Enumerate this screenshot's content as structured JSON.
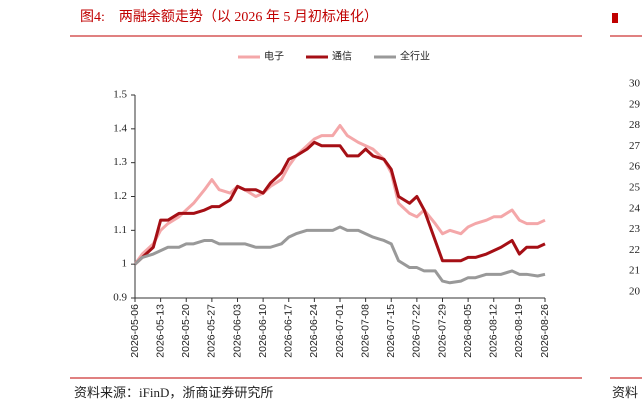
{
  "chart_data": [
    {
      "type": "line",
      "title": "图4:　两融余额走势（以 2026 年 5 月初标准化）",
      "source": "资料来源：iFinD，浙商证券研究所",
      "x": [
        "2026-05-06",
        "2026-05-08",
        "2026-05-11",
        "2026-05-13",
        "2026-05-15",
        "2026-05-18",
        "2026-05-20",
        "2026-05-22",
        "2026-05-25",
        "2026-05-27",
        "2026-05-29",
        "2026-06-01",
        "2026-06-03",
        "2026-06-05",
        "2026-06-08",
        "2026-06-10",
        "2026-06-12",
        "2026-06-15",
        "2026-06-17",
        "2026-06-19",
        "2026-06-22",
        "2026-06-24",
        "2026-06-26",
        "2026-06-29",
        "2026-07-01",
        "2026-07-03",
        "2026-07-06",
        "2026-07-08",
        "2026-07-10",
        "2026-07-13",
        "2026-07-15",
        "2026-07-17",
        "2026-07-20",
        "2026-07-22",
        "2026-07-24",
        "2026-07-27",
        "2026-07-29",
        "2026-07-31",
        "2026-08-03",
        "2026-08-05",
        "2026-08-07",
        "2026-08-10",
        "2026-08-12",
        "2026-08-14",
        "2026-08-17",
        "2026-08-19",
        "2026-08-21",
        "2026-08-24",
        "2026-08-26"
      ],
      "series": [
        {
          "name": "电子",
          "color": "#f4a7a9",
          "values": [
            1.0,
            1.03,
            1.06,
            1.1,
            1.12,
            1.14,
            1.16,
            1.18,
            1.22,
            1.25,
            1.22,
            1.21,
            1.23,
            1.22,
            1.2,
            1.21,
            1.23,
            1.25,
            1.29,
            1.32,
            1.35,
            1.37,
            1.38,
            1.38,
            1.41,
            1.38,
            1.36,
            1.35,
            1.34,
            1.31,
            1.27,
            1.18,
            1.15,
            1.14,
            1.16,
            1.12,
            1.09,
            1.1,
            1.09,
            1.11,
            1.12,
            1.13,
            1.14,
            1.14,
            1.16,
            1.13,
            1.12,
            1.12,
            1.13
          ]
        },
        {
          "name": "通信",
          "color": "#a50f15",
          "values": [
            1.0,
            1.02,
            1.05,
            1.13,
            1.13,
            1.15,
            1.15,
            1.15,
            1.16,
            1.17,
            1.17,
            1.19,
            1.23,
            1.22,
            1.22,
            1.21,
            1.24,
            1.27,
            1.31,
            1.32,
            1.34,
            1.36,
            1.35,
            1.35,
            1.35,
            1.32,
            1.32,
            1.34,
            1.32,
            1.31,
            1.28,
            1.2,
            1.18,
            1.2,
            1.16,
            1.07,
            1.01,
            1.01,
            1.01,
            1.02,
            1.02,
            1.03,
            1.04,
            1.05,
            1.07,
            1.03,
            1.05,
            1.05,
            1.06
          ]
        },
        {
          "name": "全行业",
          "color": "#999999",
          "values": [
            1.0,
            1.02,
            1.03,
            1.04,
            1.05,
            1.05,
            1.06,
            1.06,
            1.07,
            1.07,
            1.06,
            1.06,
            1.06,
            1.06,
            1.05,
            1.05,
            1.05,
            1.06,
            1.08,
            1.09,
            1.1,
            1.1,
            1.1,
            1.1,
            1.11,
            1.1,
            1.1,
            1.09,
            1.08,
            1.07,
            1.06,
            1.01,
            0.99,
            0.99,
            0.98,
            0.98,
            0.95,
            0.945,
            0.95,
            0.96,
            0.96,
            0.97,
            0.97,
            0.97,
            0.98,
            0.97,
            0.97,
            0.965,
            0.97
          ]
        }
      ],
      "xlim": [
        "2026-05-06",
        "2026-08-26"
      ],
      "xticks": [
        "2026-05-06",
        "2026-05-13",
        "2026-05-20",
        "2026-05-27",
        "2026-06-03",
        "2026-06-10",
        "2026-06-17",
        "2026-06-24",
        "2026-07-01",
        "2026-07-08",
        "2026-07-15",
        "2026-07-22",
        "2026-07-29",
        "2026-08-05",
        "2026-08-12",
        "2026-08-19",
        "2026-08-26"
      ],
      "ylim": [
        0.9,
        1.5
      ],
      "yticks": [
        0.9,
        1,
        1.1,
        1.2,
        1.3,
        1.4,
        1.5
      ]
    },
    {
      "type": "line",
      "source": "资料",
      "ylim": [
        20,
        30
      ],
      "yticks": [
        20,
        21,
        22,
        23,
        24,
        25,
        26,
        27,
        28,
        29,
        30
      ]
    }
  ]
}
